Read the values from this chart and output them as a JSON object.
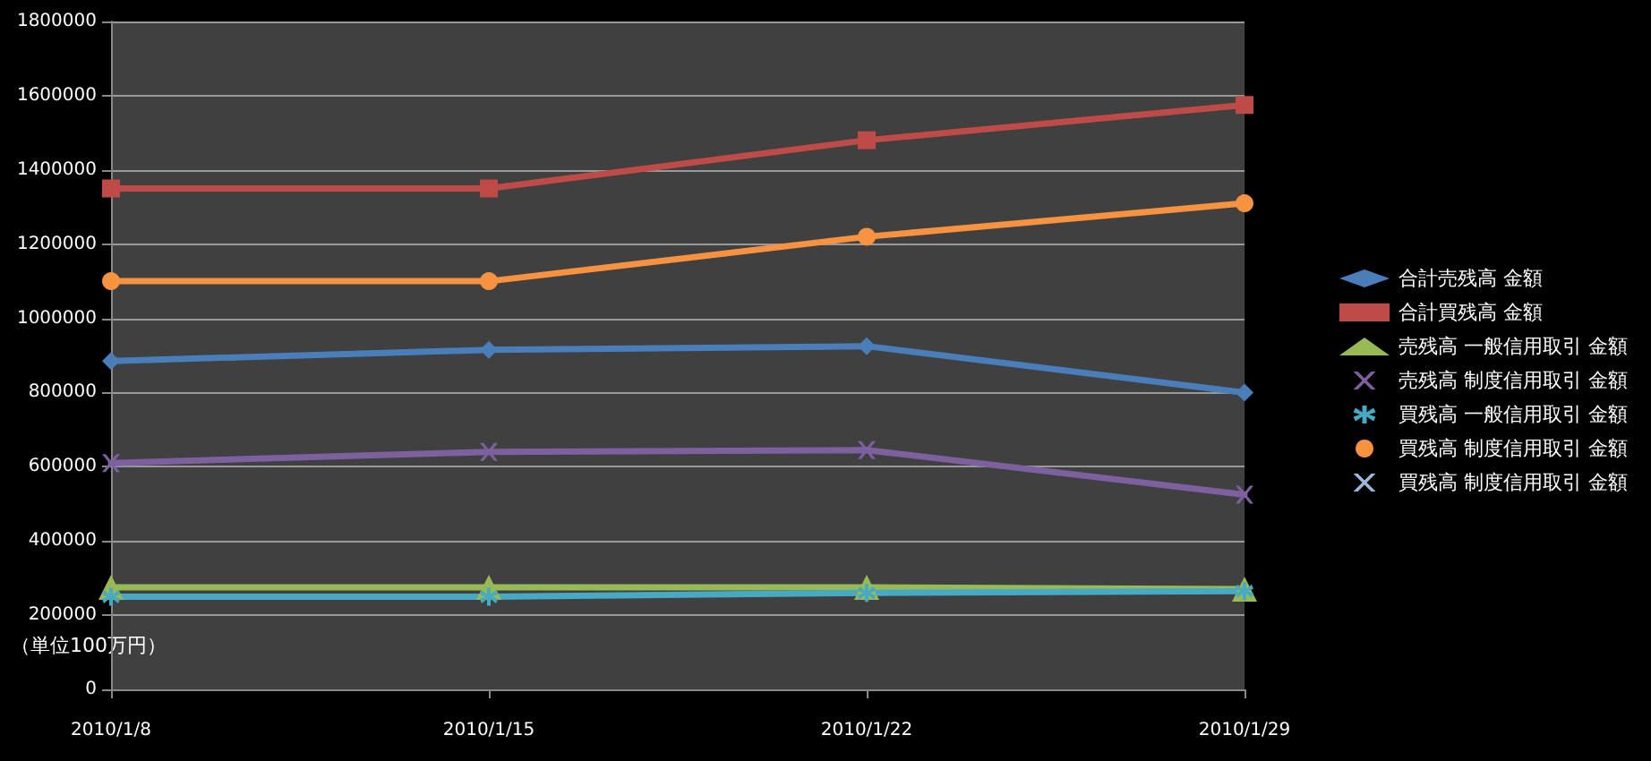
{
  "chart_data": {
    "type": "line",
    "categories": [
      "2010/1/8",
      "2010/1/15",
      "2010/1/22",
      "2010/1/29"
    ],
    "series": [
      {
        "name": "合計売残高 金額",
        "color": "#4a7ebb",
        "marker": "diamond",
        "values": [
          885000,
          915000,
          925000,
          800000
        ]
      },
      {
        "name": "合計買残高 金額",
        "color": "#be4b48",
        "marker": "square",
        "values": [
          1350000,
          1350000,
          1480000,
          1575000
        ]
      },
      {
        "name": "売残高 一般信用取引 金額",
        "color": "#98b954",
        "marker": "triangle",
        "values": [
          275000,
          275000,
          275000,
          270000
        ]
      },
      {
        "name": "売残高 制度信用取引 金額",
        "color": "#7d60a0",
        "marker": "cross",
        "values": [
          610000,
          640000,
          645000,
          525000
        ]
      },
      {
        "name": "買残高 一般信用取引 金額",
        "color": "#46aac5",
        "marker": "star",
        "values": [
          250000,
          250000,
          260000,
          265000
        ]
      },
      {
        "name": "買残高 制度信用取引 金額",
        "color": "#f69240",
        "marker": "circle",
        "values": [
          1100000,
          1100000,
          1220000,
          1310000
        ]
      },
      {
        "name": "買残高 制度信用取引 金額",
        "color": "#9bb7d9",
        "marker": "cross",
        "values": [
          null,
          null,
          null,
          null
        ]
      }
    ],
    "ylim": [
      0,
      1800000
    ],
    "yticks": [
      0,
      200000,
      400000,
      600000,
      800000,
      1000000,
      1200000,
      1400000,
      1600000,
      1800000
    ],
    "grid": "y",
    "legend": "right",
    "annotations": [
      "（単位100万円）"
    ]
  }
}
